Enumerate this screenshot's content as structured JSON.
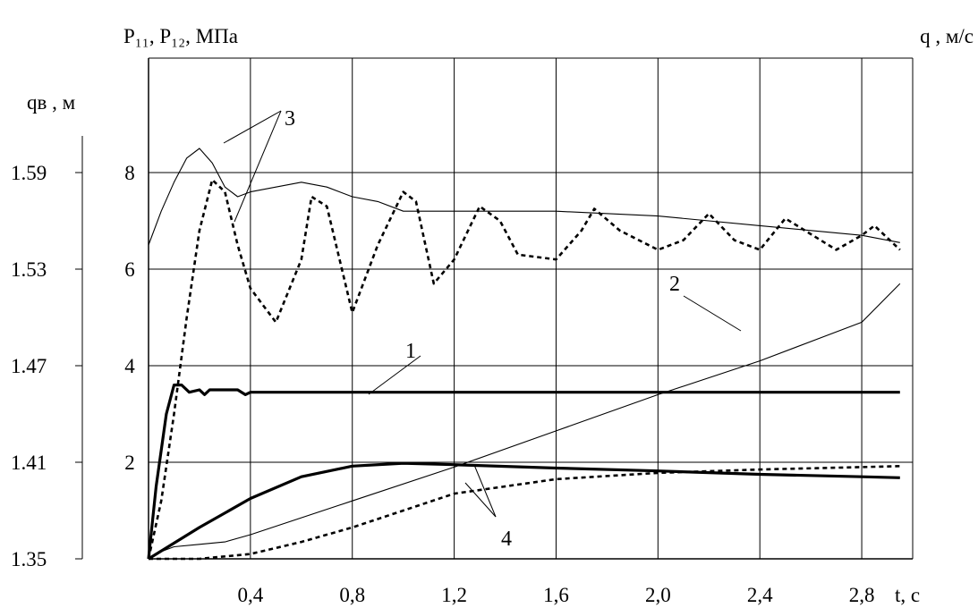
{
  "chart_data": {
    "type": "line",
    "title": "",
    "xlabel": "t, c",
    "ylabel_left_outer": "qв , м",
    "ylabel_left_inner": "P₁₁, P₁₂, МПа",
    "ylabel_right": "q , м/с",
    "xlim": [
      0,
      3.0
    ],
    "ylim": [
      0,
      10
    ],
    "x_ticks": [
      "0,4",
      "0,8",
      "1,2",
      "1,6",
      "2,0",
      "2,4",
      "2,8"
    ],
    "y_ticks_inner": [
      "2",
      "4",
      "6",
      "8"
    ],
    "y_ticks_outer": [
      "1.35",
      "1.41",
      "1.47",
      "1.53",
      "1.59"
    ],
    "grid": true,
    "callouts": [
      "1",
      "2",
      "3",
      "4"
    ],
    "series": [
      {
        "callout": "1",
        "style": "thick-solid",
        "x": [
          0,
          0.03,
          0.07,
          0.1,
          0.13,
          0.16,
          0.2,
          0.22,
          0.24,
          0.3,
          0.35,
          0.38,
          0.4,
          0.8,
          1.6,
          2.4,
          2.95
        ],
        "y": [
          0,
          1.5,
          3.0,
          3.6,
          3.6,
          3.45,
          3.5,
          3.4,
          3.5,
          3.5,
          3.5,
          3.4,
          3.45,
          3.45,
          3.45,
          3.45,
          3.45
        ]
      },
      {
        "callout": "2",
        "style": "thin-solid",
        "x": [
          0,
          0.05,
          0.1,
          0.2,
          0.3,
          0.4,
          0.8,
          1.2,
          1.6,
          2.0,
          2.4,
          2.8,
          2.95
        ],
        "y": [
          0,
          0.15,
          0.25,
          0.3,
          0.35,
          0.5,
          1.2,
          1.9,
          2.65,
          3.4,
          4.1,
          4.9,
          5.7
        ]
      },
      {
        "callout": "3",
        "style": "thin-solid",
        "x": [
          0,
          0.05,
          0.1,
          0.15,
          0.2,
          0.25,
          0.3,
          0.35,
          0.4,
          0.5,
          0.6,
          0.7,
          0.8,
          0.9,
          1.0,
          1.1,
          1.2,
          1.6,
          2.0,
          2.4,
          2.8,
          2.95
        ],
        "y": [
          6.5,
          7.2,
          7.8,
          8.3,
          8.5,
          8.2,
          7.7,
          7.5,
          7.6,
          7.7,
          7.8,
          7.7,
          7.5,
          7.4,
          7.2,
          7.2,
          7.2,
          7.2,
          7.1,
          6.9,
          6.7,
          6.55
        ]
      },
      {
        "callout": "3",
        "style": "dashed",
        "x": [
          0,
          0.05,
          0.1,
          0.15,
          0.2,
          0.25,
          0.3,
          0.35,
          0.4,
          0.5,
          0.6,
          0.64,
          0.7,
          0.8,
          0.9,
          1.0,
          1.05,
          1.12,
          1.2,
          1.3,
          1.38,
          1.45,
          1.6,
          1.7,
          1.75,
          1.85,
          2.0,
          2.1,
          2.2,
          2.3,
          2.4,
          2.5,
          2.7,
          2.8,
          2.85,
          2.95
        ],
        "y": [
          0,
          1.2,
          3.0,
          5.0,
          6.8,
          7.85,
          7.6,
          6.5,
          5.6,
          4.9,
          6.2,
          7.5,
          7.3,
          5.1,
          6.5,
          7.6,
          7.4,
          5.7,
          6.2,
          7.3,
          7.0,
          6.3,
          6.2,
          6.8,
          7.25,
          6.8,
          6.4,
          6.6,
          7.15,
          6.6,
          6.4,
          7.05,
          6.4,
          6.7,
          6.9,
          6.4
        ]
      },
      {
        "callout": "4",
        "style": "thick-solid",
        "x": [
          0,
          0.2,
          0.4,
          0.6,
          0.8,
          1.0,
          1.2,
          1.6,
          2.0,
          2.4,
          2.8,
          2.95
        ],
        "y": [
          0,
          0.65,
          1.25,
          1.7,
          1.92,
          1.98,
          1.95,
          1.88,
          1.82,
          1.75,
          1.7,
          1.68
        ]
      },
      {
        "callout": "4",
        "style": "dashed",
        "x": [
          0,
          0.2,
          0.4,
          0.6,
          0.8,
          1.0,
          1.2,
          1.6,
          2.0,
          2.4,
          2.8,
          2.95
        ],
        "y": [
          0,
          0.0,
          0.1,
          0.35,
          0.65,
          1.0,
          1.35,
          1.65,
          1.78,
          1.85,
          1.9,
          1.92
        ]
      }
    ]
  }
}
